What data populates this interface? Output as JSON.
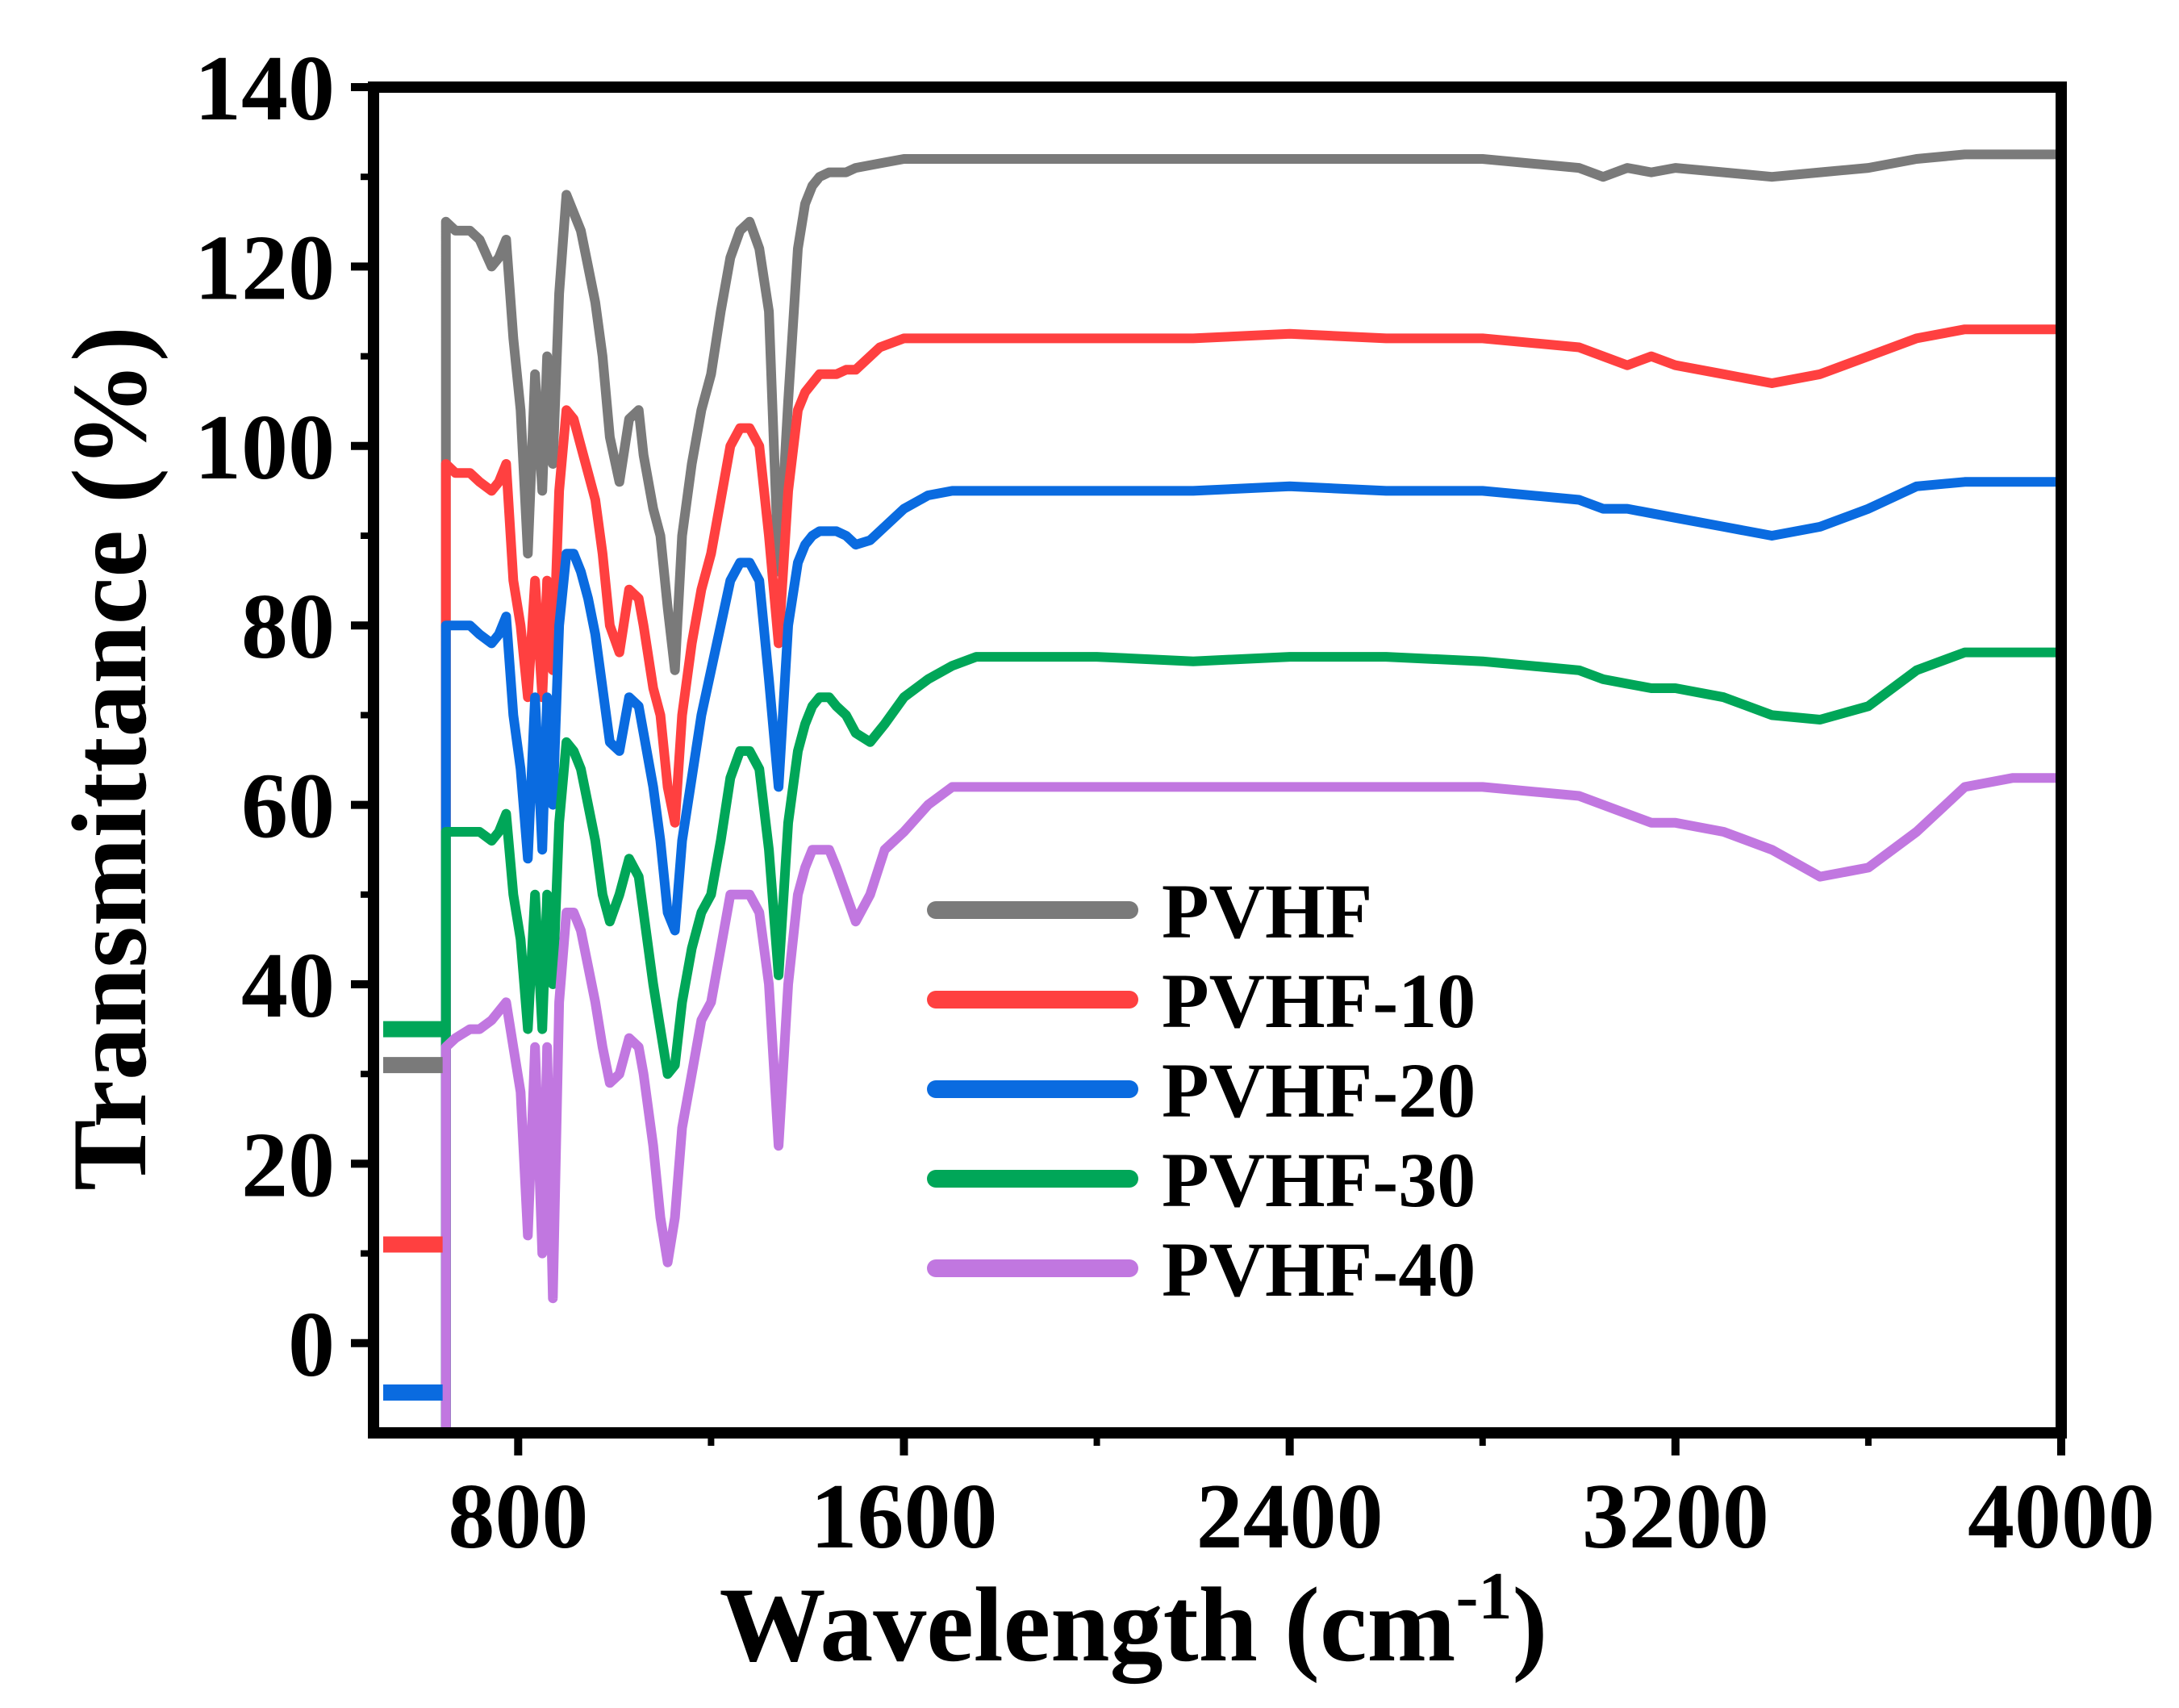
{
  "chart_data": {
    "type": "line",
    "title": "",
    "xlabel": "Wavelength (cm",
    "xlabel_sup": "-1",
    "xlabel_close": ")",
    "ylabel": "Transmittance (%)",
    "xlim": [
      500,
      4000
    ],
    "ylim": [
      -10,
      140
    ],
    "xticks": [
      800,
      1600,
      2400,
      3200,
      4000
    ],
    "xtick_labels": [
      "800",
      "1600",
      "2400",
      "3200",
      "4000"
    ],
    "yticks": [
      0,
      20,
      40,
      60,
      80,
      100,
      120,
      140
    ],
    "ytick_labels": [
      "0",
      "20",
      "40",
      "60",
      "80",
      "100",
      "120",
      "140"
    ],
    "legend_position": "lower-right",
    "series": [
      {
        "name": "PVHF",
        "color": "#7a7a7a",
        "stub": 31,
        "x": [
          650,
          670,
          700,
          720,
          745,
          760,
          775,
          790,
          805,
          820,
          835,
          850,
          860,
          872,
          885,
          900,
          915,
          930,
          945,
          960,
          975,
          990,
          1010,
          1030,
          1050,
          1060,
          1080,
          1095,
          1110,
          1125,
          1140,
          1160,
          1180,
          1200,
          1220,
          1240,
          1260,
          1280,
          1300,
          1320,
          1340,
          1360,
          1380,
          1395,
          1410,
          1425,
          1445,
          1460,
          1480,
          1500,
          1550,
          1600,
          1650,
          1700,
          1750,
          1800,
          2000,
          2200,
          2400,
          2600,
          2800,
          3000,
          3050,
          3100,
          3150,
          3200,
          3300,
          3400,
          3500,
          3600,
          3700,
          3800,
          3900,
          4000
        ],
        "y": [
          125,
          124,
          124,
          123,
          120,
          121,
          123,
          112,
          104,
          88,
          108,
          95,
          110,
          98,
          117,
          128,
          126,
          124,
          120,
          116,
          110,
          101,
          96,
          103,
          104,
          99,
          93,
          90,
          82,
          75,
          90,
          98,
          104,
          108,
          115,
          121,
          124,
          125,
          122,
          115,
          86,
          105,
          122,
          127,
          129,
          130,
          130.5,
          130.5,
          130.5,
          131,
          131.5,
          132,
          132,
          132,
          132,
          132,
          132,
          132,
          132,
          132,
          132,
          131,
          130,
          131,
          130.5,
          131,
          130.5,
          130,
          130.5,
          131,
          132,
          132.5,
          132.5,
          132.5
        ]
      },
      {
        "name": "PVHF-10",
        "color": "#ff4040",
        "stub": 11,
        "x": [
          650,
          670,
          700,
          720,
          745,
          760,
          775,
          790,
          805,
          820,
          835,
          850,
          860,
          872,
          885,
          900,
          915,
          930,
          945,
          960,
          975,
          990,
          1010,
          1030,
          1050,
          1060,
          1080,
          1095,
          1110,
          1125,
          1140,
          1160,
          1180,
          1200,
          1220,
          1240,
          1260,
          1280,
          1300,
          1320,
          1340,
          1360,
          1380,
          1395,
          1410,
          1425,
          1445,
          1460,
          1480,
          1500,
          1550,
          1600,
          1650,
          1700,
          1750,
          1800,
          2000,
          2200,
          2400,
          2600,
          2800,
          3000,
          3050,
          3100,
          3150,
          3200,
          3300,
          3400,
          3500,
          3600,
          3700,
          3800,
          3900,
          4000
        ],
        "y": [
          98,
          97,
          97,
          96,
          95,
          96,
          98,
          85,
          80,
          72,
          85,
          72,
          85,
          75,
          95,
          104,
          103,
          100,
          97,
          94,
          88,
          80,
          77,
          84,
          83,
          80,
          73,
          70,
          62,
          58,
          70,
          78,
          84,
          88,
          94,
          100,
          102,
          102,
          100,
          90,
          78,
          95,
          104,
          106,
          107,
          108,
          108,
          108,
          108.5,
          108.5,
          111,
          112,
          112,
          112,
          112,
          112,
          112,
          112,
          112.5,
          112,
          112,
          111,
          110,
          109,
          110,
          109,
          108,
          107,
          108,
          110,
          112,
          113,
          113,
          113
        ]
      },
      {
        "name": "PVHF-20",
        "color": "#0a6be0",
        "stub": -5.5,
        "x": [
          650,
          670,
          700,
          720,
          745,
          760,
          775,
          790,
          805,
          820,
          835,
          850,
          860,
          872,
          885,
          900,
          915,
          930,
          945,
          960,
          975,
          990,
          1010,
          1030,
          1050,
          1060,
          1080,
          1095,
          1110,
          1125,
          1140,
          1160,
          1180,
          1200,
          1220,
          1240,
          1260,
          1280,
          1300,
          1320,
          1340,
          1360,
          1380,
          1395,
          1410,
          1425,
          1445,
          1460,
          1480,
          1500,
          1530,
          1560,
          1600,
          1650,
          1700,
          1750,
          1800,
          2000,
          2200,
          2400,
          2600,
          2800,
          3000,
          3050,
          3100,
          3150,
          3200,
          3300,
          3400,
          3500,
          3600,
          3700,
          3800,
          3900,
          4000
        ],
        "y": [
          80,
          80,
          80,
          79,
          78,
          79,
          81,
          70,
          64,
          54,
          72,
          55,
          72,
          60,
          80,
          88,
          88,
          86,
          83,
          79,
          73,
          67,
          66,
          72,
          71,
          68,
          62,
          56,
          48,
          46,
          56,
          63,
          70,
          75,
          80,
          85,
          87,
          87,
          85,
          74,
          62,
          80,
          87,
          89,
          90,
          90.5,
          90.5,
          90.5,
          90,
          89,
          89.5,
          91,
          93,
          94.5,
          95,
          95,
          95,
          95,
          95,
          95.5,
          95,
          95,
          94,
          93,
          93,
          92.5,
          92,
          91,
          90,
          91,
          93,
          95.5,
          96,
          96,
          96
        ]
      },
      {
        "name": "PVHF-30",
        "color": "#00a658",
        "stub": 35,
        "x": [
          650,
          670,
          700,
          720,
          745,
          760,
          775,
          790,
          805,
          820,
          835,
          850,
          860,
          872,
          885,
          900,
          915,
          930,
          945,
          960,
          975,
          990,
          1010,
          1030,
          1050,
          1060,
          1080,
          1095,
          1110,
          1125,
          1140,
          1160,
          1180,
          1200,
          1220,
          1240,
          1260,
          1280,
          1300,
          1320,
          1340,
          1360,
          1380,
          1395,
          1410,
          1425,
          1445,
          1460,
          1480,
          1500,
          1530,
          1560,
          1600,
          1650,
          1700,
          1750,
          1800,
          2000,
          2200,
          2400,
          2600,
          2800,
          3000,
          3050,
          3100,
          3150,
          3200,
          3300,
          3400,
          3500,
          3600,
          3700,
          3800,
          3900,
          4000
        ],
        "y": [
          57,
          57,
          57,
          57,
          56,
          57,
          59,
          50,
          45,
          35,
          50,
          35,
          50,
          40,
          58,
          67,
          66,
          64,
          60,
          56,
          50,
          47,
          50,
          54,
          52,
          48,
          40,
          35,
          30,
          31,
          38,
          44,
          48,
          50,
          56,
          63,
          66,
          66,
          64,
          55,
          41,
          58,
          66,
          69,
          71,
          72,
          72,
          71,
          70,
          68,
          67,
          69,
          72,
          74,
          75.5,
          76.5,
          76.5,
          76.5,
          76,
          76.5,
          76.5,
          76,
          75,
          74,
          73.5,
          73,
          73,
          72,
          70,
          69.5,
          71,
          75,
          77,
          77,
          77
        ]
      },
      {
        "name": "PVHF-40",
        "color": "#c177e0",
        "stub": -10,
        "x": [
          650,
          670,
          700,
          720,
          745,
          760,
          775,
          790,
          805,
          820,
          835,
          850,
          860,
          872,
          885,
          900,
          915,
          930,
          945,
          960,
          975,
          990,
          1010,
          1030,
          1050,
          1060,
          1080,
          1095,
          1110,
          1125,
          1140,
          1160,
          1180,
          1200,
          1220,
          1240,
          1260,
          1280,
          1300,
          1320,
          1340,
          1360,
          1380,
          1395,
          1410,
          1425,
          1445,
          1460,
          1480,
          1500,
          1530,
          1560,
          1600,
          1650,
          1700,
          1750,
          1800,
          2000,
          2200,
          2400,
          2600,
          2800,
          3000,
          3050,
          3100,
          3150,
          3200,
          3300,
          3400,
          3500,
          3600,
          3700,
          3800,
          3900,
          4000
        ],
        "y": [
          33,
          34,
          35,
          35,
          36,
          37,
          38,
          33,
          28,
          12,
          33,
          10,
          33,
          5,
          38,
          48,
          48,
          46,
          42,
          38,
          33,
          29,
          30,
          34,
          33,
          30,
          22,
          14,
          9,
          14,
          24,
          30,
          36,
          38,
          44,
          50,
          50,
          50,
          48,
          40,
          22,
          40,
          50,
          53,
          55,
          55,
          55,
          53,
          50,
          47,
          50,
          55,
          57,
          60,
          62,
          62,
          62,
          62,
          62,
          62,
          62,
          62,
          61,
          60,
          59,
          58,
          58,
          57,
          55,
          52,
          53,
          57,
          62,
          63,
          63
        ]
      }
    ]
  }
}
